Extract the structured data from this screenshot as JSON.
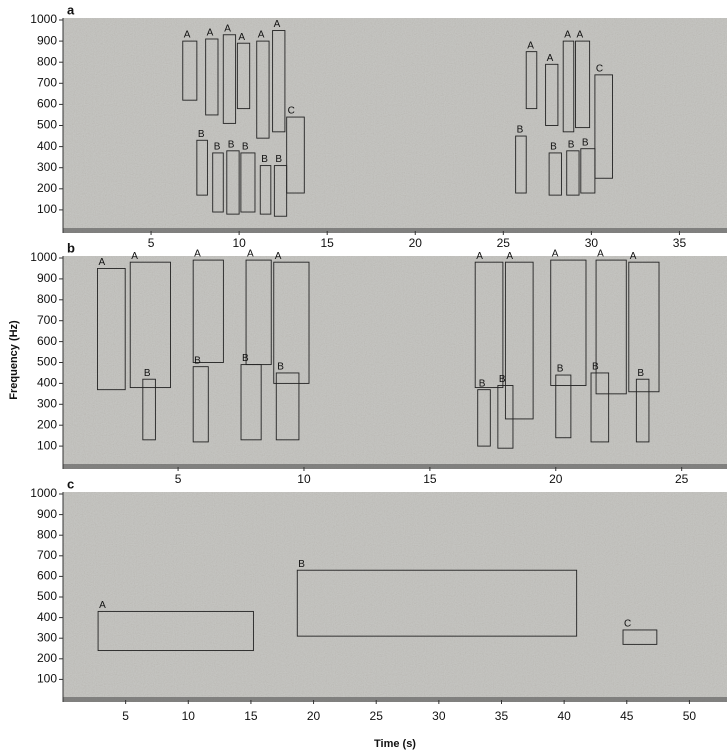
{
  "x_label": "Time (s)",
  "y_label": "Frequency (Hz)",
  "chart_data": [
    {
      "type": "spectrogram",
      "panel_label": "a",
      "xlim": [
        0,
        37.7
      ],
      "ylim": [
        0,
        1000
      ],
      "xticks": [
        5,
        10,
        15,
        20,
        25,
        30,
        35
      ],
      "yticks": [
        100,
        200,
        300,
        400,
        500,
        600,
        700,
        800,
        900,
        1000
      ],
      "boxes": [
        {
          "label": "A",
          "x": [
            6.8,
            7.6
          ],
          "y": [
            620,
            900
          ]
        },
        {
          "label": "A",
          "x": [
            8.1,
            8.8
          ],
          "y": [
            550,
            910
          ]
        },
        {
          "label": "A",
          "x": [
            9.1,
            9.8
          ],
          "y": [
            510,
            930
          ]
        },
        {
          "label": "A",
          "x": [
            9.9,
            10.6
          ],
          "y": [
            580,
            890
          ]
        },
        {
          "label": "A",
          "x": [
            11.0,
            11.7
          ],
          "y": [
            440,
            900
          ]
        },
        {
          "label": "A",
          "x": [
            11.9,
            12.6
          ],
          "y": [
            470,
            950
          ]
        },
        {
          "label": "C",
          "x": [
            12.7,
            13.7
          ],
          "y": [
            180,
            540
          ]
        },
        {
          "label": "B",
          "x": [
            7.6,
            8.2
          ],
          "y": [
            170,
            430
          ]
        },
        {
          "label": "B",
          "x": [
            8.5,
            9.1
          ],
          "y": [
            90,
            370
          ]
        },
        {
          "label": "B",
          "x": [
            9.3,
            10.0
          ],
          "y": [
            80,
            380
          ]
        },
        {
          "label": "B",
          "x": [
            10.1,
            10.9
          ],
          "y": [
            90,
            370
          ]
        },
        {
          "label": "B",
          "x": [
            11.2,
            11.8
          ],
          "y": [
            80,
            310
          ]
        },
        {
          "label": "B",
          "x": [
            12.0,
            12.7
          ],
          "y": [
            70,
            310
          ]
        },
        {
          "label": "A",
          "x": [
            26.3,
            26.9
          ],
          "y": [
            580,
            850
          ]
        },
        {
          "label": "A",
          "x": [
            27.4,
            28.1
          ],
          "y": [
            500,
            790
          ]
        },
        {
          "label": "A",
          "x": [
            28.4,
            29.0
          ],
          "y": [
            470,
            900
          ]
        },
        {
          "label": "A",
          "x": [
            29.1,
            29.9
          ],
          "y": [
            490,
            900
          ]
        },
        {
          "label": "C",
          "x": [
            30.2,
            31.2
          ],
          "y": [
            250,
            740
          ]
        },
        {
          "label": "B",
          "x": [
            25.7,
            26.3
          ],
          "y": [
            180,
            450
          ]
        },
        {
          "label": "B",
          "x": [
            27.6,
            28.3
          ],
          "y": [
            170,
            370
          ]
        },
        {
          "label": "B",
          "x": [
            28.6,
            29.3
          ],
          "y": [
            170,
            380
          ]
        },
        {
          "label": "B",
          "x": [
            29.4,
            30.2
          ],
          "y": [
            180,
            390
          ]
        }
      ]
    },
    {
      "type": "spectrogram",
      "panel_label": "b",
      "xlim": [
        0.43,
        26.8
      ],
      "ylim": [
        0,
        1000
      ],
      "xticks": [
        5,
        10,
        15,
        20,
        25
      ],
      "yticks": [
        100,
        200,
        300,
        400,
        500,
        600,
        700,
        800,
        900,
        1000
      ],
      "boxes": [
        {
          "label": "A",
          "x": [
            1.8,
            2.9
          ],
          "y": [
            370,
            950
          ]
        },
        {
          "label": "A",
          "x": [
            3.1,
            4.7
          ],
          "y": [
            380,
            980
          ]
        },
        {
          "label": "B",
          "x": [
            3.6,
            4.1
          ],
          "y": [
            130,
            420
          ]
        },
        {
          "label": "A",
          "x": [
            5.6,
            6.8
          ],
          "y": [
            500,
            990
          ]
        },
        {
          "label": "B",
          "x": [
            5.6,
            6.2
          ],
          "y": [
            120,
            480
          ]
        },
        {
          "label": "A",
          "x": [
            7.7,
            8.7
          ],
          "y": [
            490,
            990
          ]
        },
        {
          "label": "B",
          "x": [
            7.5,
            8.3
          ],
          "y": [
            130,
            490
          ]
        },
        {
          "label": "A",
          "x": [
            8.8,
            10.2
          ],
          "y": [
            400,
            980
          ]
        },
        {
          "label": "B",
          "x": [
            8.9,
            9.8
          ],
          "y": [
            130,
            450
          ]
        },
        {
          "label": "A",
          "x": [
            16.8,
            17.9
          ],
          "y": [
            380,
            980
          ]
        },
        {
          "label": "B",
          "x": [
            16.9,
            17.4
          ],
          "y": [
            100,
            370
          ]
        },
        {
          "label": "A",
          "x": [
            18.0,
            19.1
          ],
          "y": [
            230,
            980
          ]
        },
        {
          "label": "B",
          "x": [
            17.7,
            18.3
          ],
          "y": [
            90,
            390
          ]
        },
        {
          "label": "A",
          "x": [
            19.8,
            21.2
          ],
          "y": [
            390,
            990
          ]
        },
        {
          "label": "B",
          "x": [
            20.0,
            20.6
          ],
          "y": [
            140,
            440
          ]
        },
        {
          "label": "A",
          "x": [
            21.6,
            22.8
          ],
          "y": [
            350,
            990
          ]
        },
        {
          "label": "B",
          "x": [
            21.4,
            22.1
          ],
          "y": [
            120,
            450
          ]
        },
        {
          "label": "A",
          "x": [
            22.9,
            24.1
          ],
          "y": [
            360,
            980
          ]
        },
        {
          "label": "B",
          "x": [
            23.2,
            23.7
          ],
          "y": [
            120,
            420
          ]
        }
      ]
    },
    {
      "type": "spectrogram",
      "panel_label": "c",
      "xlim": [
        0,
        53
      ],
      "ylim": [
        0,
        1000
      ],
      "xticks": [
        5,
        10,
        15,
        20,
        25,
        30,
        35,
        40,
        45,
        50
      ],
      "yticks": [
        100,
        200,
        300,
        400,
        500,
        600,
        700,
        800,
        900,
        1000
      ],
      "boxes": [
        {
          "label": "A",
          "x": [
            2.8,
            15.2
          ],
          "y": [
            240,
            430
          ]
        },
        {
          "label": "B",
          "x": [
            18.7,
            41.0
          ],
          "y": [
            310,
            630
          ]
        },
        {
          "label": "C",
          "x": [
            44.7,
            47.4
          ],
          "y": [
            270,
            340
          ]
        }
      ]
    }
  ]
}
